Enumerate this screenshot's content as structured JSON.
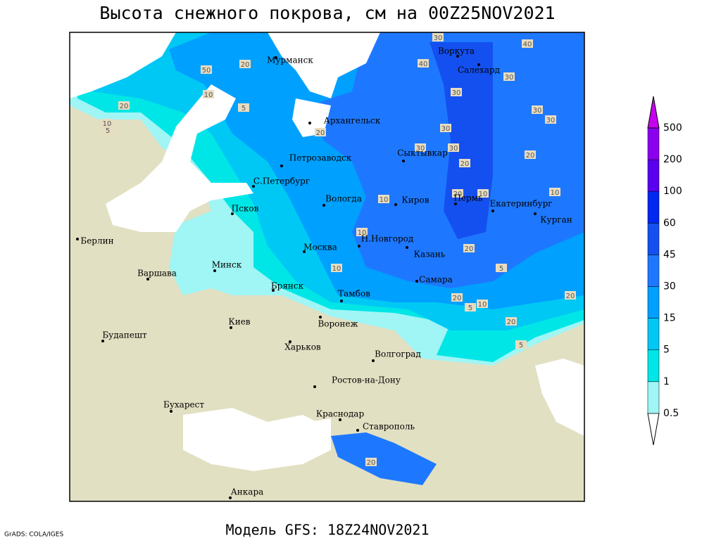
{
  "title": "Высота снежного покрова, см на 00Z25NOV2021",
  "subtitle": "Модель GFS: 18Z24NOV2021",
  "credit": "GrADS: COLA/IGES",
  "cities": [
    "Мурманск",
    "Воркута",
    "Салехард",
    "Архангельск",
    "Сыктывкар",
    "Петрозаводск",
    "С.Петербург",
    "Вологда",
    "Киров",
    "Пермь",
    "Екатеринбург",
    "Курган",
    "Псков",
    "Берлин",
    "Н.Новгород",
    "Москва",
    "Казань",
    "Минск",
    "Варшава",
    "Брянск",
    "Самара",
    "Тамбов",
    "Киев",
    "Воронеж",
    "Будапешт",
    "Харьков",
    "Волгоград",
    "Ростов-на-Дону",
    "Бухарест",
    "Краснодар",
    "Ставрополь",
    "Анкара"
  ],
  "contours": [
    30,
    40,
    50,
    20,
    40,
    30,
    10,
    30,
    20,
    5,
    10,
    5,
    30,
    30,
    20,
    30,
    30,
    30,
    20,
    20,
    10,
    10,
    20,
    10,
    10,
    20,
    5,
    10,
    20,
    5,
    10,
    20,
    20,
    5,
    20
  ],
  "legend": {
    "levels": [
      0.5,
      1,
      5,
      15,
      30,
      45,
      60,
      100,
      200,
      500
    ],
    "colors": [
      "#ffffff",
      "#a0f5f5",
      "#00e6e6",
      "#00c8f5",
      "#00a0ff",
      "#1e78ff",
      "#1450f0",
      "#0028f0",
      "#5a00f0",
      "#8c00f0",
      "#c800f0"
    ]
  }
}
